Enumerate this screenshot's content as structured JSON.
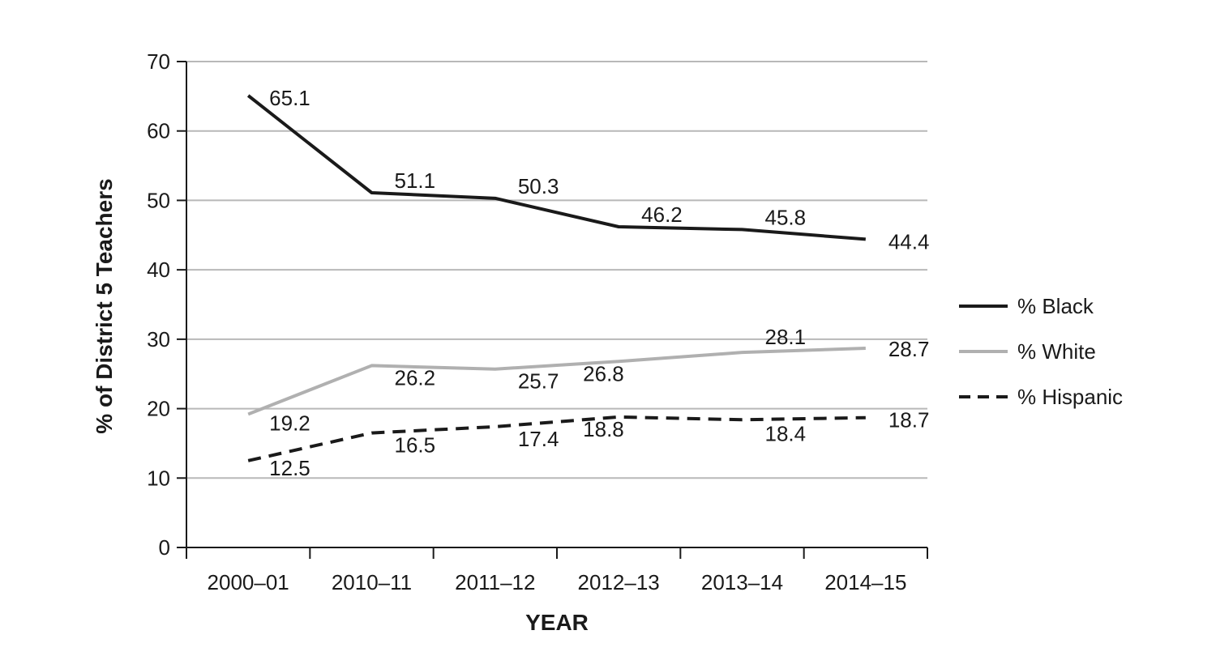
{
  "chart_data": {
    "type": "line",
    "title": "",
    "xlabel": "YEAR",
    "ylabel": "% of District 5 Teachers",
    "categories": [
      "2000–01",
      "2010–11",
      "2011–12",
      "2012–13",
      "2013–14",
      "2014–15"
    ],
    "ylim": [
      0,
      70
    ],
    "yticks": [
      0,
      10,
      20,
      30,
      40,
      50,
      60,
      70
    ],
    "grid": true,
    "legend_position": "right",
    "series": [
      {
        "name": "% Black",
        "values": [
          65.1,
          51.1,
          50.3,
          46.2,
          45.8,
          44.4
        ],
        "labels": [
          "65.1",
          "51.1",
          "50.3",
          "46.2",
          "45.8",
          "44.4"
        ],
        "color": "#1a1a1a",
        "style": "solid"
      },
      {
        "name": "% White",
        "values": [
          19.2,
          26.2,
          25.7,
          26.8,
          28.1,
          28.7
        ],
        "labels": [
          "19.2",
          "26.2",
          "25.7",
          "26.8",
          "28.1",
          "28.7"
        ],
        "color": "#b0b0b0",
        "style": "solid"
      },
      {
        "name": "% Hispanic",
        "values": [
          12.5,
          16.5,
          17.4,
          18.8,
          18.4,
          18.7
        ],
        "labels": [
          "12.5",
          "16.5",
          "17.4",
          "18.8",
          "18.4",
          "18.7"
        ],
        "color": "#1a1a1a",
        "style": "dashed"
      }
    ]
  }
}
